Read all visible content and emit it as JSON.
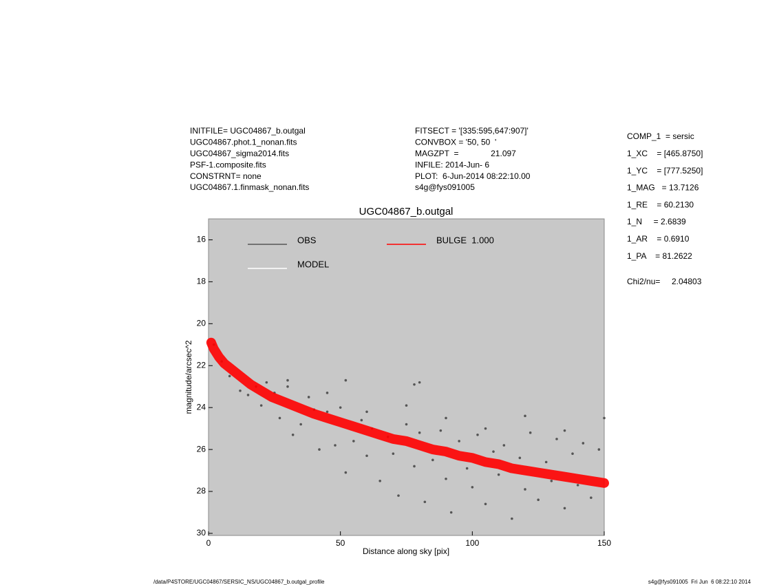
{
  "header": {
    "left": [
      "INITFILE= UGC04867_b.outgal",
      "UGC04867.phot.1_nonan.fits",
      "UGC04867_sigma2014.fits",
      "PSF-1.composite.fits",
      "CONSTRNT= none",
      "UGC04867.1.finmask_nonan.fits"
    ],
    "middle": [
      "FITSECT = '[335:595,647:907]'",
      "CONVBOX = '50, 50  '",
      "MAGZPT  =              21.097",
      "INFILE: 2014-Jun- 6",
      "PLOT:  6-Jun-2014 08:22:10.00",
      "s4g@fys091005"
    ],
    "params": [
      "COMP_1  = sersic",
      "1_XC    = [465.8750]",
      "1_YC    = [777.5250]",
      "1_MAG   = 13.7126",
      "1_RE    = 60.2130",
      "1_N     = 2.6839",
      "1_AR    = 0.6910",
      "1_PA    = 81.2622"
    ],
    "chi2_label": "Chi2/nu=",
    "chi2_value": "2.04803"
  },
  "footer": {
    "left": "/data/P4STORE/UGC04867/SERSIC_NS/UGC04867_b.outgal_profile",
    "right": "s4g@fys091005  Fri Jun  6 08:22:10 2014"
  },
  "chart_data": {
    "type": "scatter",
    "title": "UGC04867_b.outgal",
    "x_label": "Distance along sky [pix]",
    "y_label": "magnitude/arcsec^2",
    "xlim": [
      0,
      150
    ],
    "ylim": [
      30.1,
      15
    ],
    "xticks": [
      0,
      50,
      100,
      150
    ],
    "yticks": [
      16,
      18,
      20,
      22,
      24,
      26,
      28,
      30
    ],
    "background": "#c8c8c8",
    "series": [
      {
        "name": "OBS",
        "color": "#555555",
        "mode": "markers",
        "x": [
          2,
          5,
          8,
          12,
          15,
          18,
          20,
          22,
          25,
          27,
          30,
          32,
          35,
          38,
          40,
          42,
          45,
          48,
          50,
          52,
          55,
          58,
          60,
          62,
          65,
          68,
          70,
          72,
          75,
          78,
          80,
          82,
          85,
          88,
          90,
          92,
          95,
          98,
          100,
          102,
          105,
          108,
          110,
          112,
          115,
          118,
          120,
          122,
          125,
          128,
          130,
          132,
          135,
          138,
          140,
          142,
          145,
          148,
          150,
          30,
          45,
          60,
          75,
          90,
          105,
          120,
          135,
          52,
          80,
          78
        ],
        "values": [
          21.0,
          21.8,
          22.5,
          23.2,
          23.4,
          23.0,
          23.9,
          22.8,
          23.3,
          24.5,
          23.0,
          25.3,
          24.8,
          23.5,
          24.1,
          26.0,
          24.2,
          25.8,
          24.0,
          27.1,
          25.6,
          24.6,
          26.3,
          25.0,
          27.5,
          25.4,
          26.2,
          28.2,
          24.8,
          26.8,
          25.2,
          28.5,
          26.5,
          25.1,
          27.4,
          29.0,
          25.6,
          26.9,
          27.8,
          25.3,
          28.6,
          26.1,
          27.2,
          25.8,
          29.3,
          26.4,
          27.9,
          25.2,
          28.4,
          26.6,
          27.5,
          25.5,
          28.8,
          26.2,
          27.7,
          25.7,
          28.3,
          26.0,
          24.5,
          22.7,
          23.3,
          24.2,
          23.9,
          24.5,
          25.0,
          24.4,
          25.1,
          22.7,
          22.8,
          22.9
        ]
      },
      {
        "name": "MODEL",
        "color": "#ffffff",
        "mode": "line",
        "x": [],
        "values": []
      },
      {
        "name": "BULGE  1.000",
        "color": "#ff0000",
        "mode": "band",
        "x": [
          1,
          2,
          4,
          6,
          8,
          10,
          13,
          16,
          20,
          24,
          28,
          32,
          36,
          40,
          45,
          50,
          55,
          60,
          65,
          70,
          75,
          80,
          85,
          90,
          95,
          100,
          105,
          110,
          115,
          120,
          125,
          130,
          135,
          140,
          145,
          150
        ],
        "values": [
          20.9,
          21.2,
          21.6,
          21.9,
          22.1,
          22.3,
          22.6,
          22.9,
          23.2,
          23.5,
          23.7,
          23.9,
          24.1,
          24.3,
          24.5,
          24.7,
          24.9,
          25.1,
          25.3,
          25.5,
          25.6,
          25.8,
          26.0,
          26.1,
          26.3,
          26.4,
          26.6,
          26.7,
          26.9,
          27.0,
          27.1,
          27.2,
          27.3,
          27.4,
          27.5,
          27.6
        ]
      }
    ]
  }
}
